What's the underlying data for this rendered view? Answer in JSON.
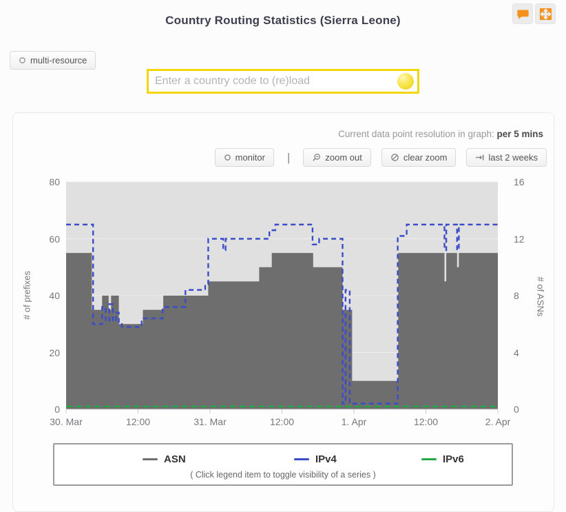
{
  "header": {
    "title": "Country Routing Statistics (Sierra Leone)"
  },
  "controls": {
    "multi_resource_label": "multi-resource",
    "country_input_placeholder": "Enter a country code to (re)load",
    "country_input_value": ""
  },
  "panel": {
    "resolution_label": "Current data point resolution in graph: ",
    "resolution_value": "per 5 mins",
    "toolbar": {
      "monitor_label": "monitor",
      "divider": "|",
      "zoom_out_label": "zoom out",
      "clear_zoom_label": "clear zoom",
      "last_2_weeks_label": "last 2 weeks"
    }
  },
  "chart_data": {
    "type": "area",
    "title": "",
    "grid": true,
    "legend_position": "bottom",
    "legend_hint": "( Click legend item to toggle visibility of a series )",
    "x_axis": {
      "unit": "hours since 30 Mar 00:00",
      "range": [
        0,
        72
      ],
      "tick_hours": [
        0,
        12,
        24,
        36,
        48,
        60,
        72
      ],
      "tick_labels": [
        "30. Mar",
        "12:00",
        "31. Mar",
        "12:00",
        "1. Apr",
        "12:00",
        "2. Apr"
      ]
    },
    "y_left": {
      "label": "# of prefixes",
      "range": [
        0,
        80
      ],
      "ticks": [
        0,
        20,
        40,
        60,
        80
      ]
    },
    "y_right": {
      "label": "# of ASNs",
      "range": [
        0,
        16
      ],
      "ticks": [
        0,
        4,
        8,
        12,
        16
      ]
    },
    "series": [
      {
        "name": "ASN",
        "axis": "right",
        "style": "area-step",
        "color": "#6e6e6e",
        "dash": "",
        "points": [
          [
            0,
            11
          ],
          [
            4.3,
            7
          ],
          [
            6.0,
            8
          ],
          [
            7.1,
            7
          ],
          [
            7.5,
            8
          ],
          [
            8.8,
            6
          ],
          [
            12.8,
            7
          ],
          [
            16.2,
            8
          ],
          [
            23.7,
            9
          ],
          [
            32.2,
            10
          ],
          [
            34.3,
            11
          ],
          [
            41.2,
            10
          ],
          [
            46.1,
            7
          ],
          [
            47.7,
            2
          ],
          [
            55.4,
            11
          ],
          [
            63.1,
            9
          ],
          [
            63.4,
            11
          ],
          [
            65.2,
            10
          ],
          [
            65.5,
            11
          ]
        ]
      },
      {
        "name": "IPv4",
        "axis": "left",
        "style": "dashed-step",
        "color": "#3b4cc8",
        "dash": "7 5",
        "points": [
          [
            0,
            65
          ],
          [
            4.5,
            30
          ],
          [
            6.0,
            36
          ],
          [
            6.6,
            31
          ],
          [
            7.2,
            37
          ],
          [
            7.8,
            31
          ],
          [
            8.3,
            34
          ],
          [
            8.8,
            30
          ],
          [
            9.3,
            29
          ],
          [
            12.6,
            32
          ],
          [
            16.1,
            36
          ],
          [
            19.9,
            42
          ],
          [
            23.2,
            44
          ],
          [
            23.7,
            60
          ],
          [
            26.2,
            56
          ],
          [
            26.6,
            60
          ],
          [
            33.9,
            63
          ],
          [
            34.9,
            65
          ],
          [
            41.1,
            58
          ],
          [
            42.2,
            60
          ],
          [
            46.1,
            2
          ],
          [
            46.6,
            42
          ],
          [
            47.3,
            2
          ],
          [
            55.3,
            61
          ],
          [
            56.8,
            65
          ],
          [
            63.1,
            56
          ],
          [
            63.4,
            65
          ],
          [
            65.2,
            56
          ],
          [
            65.5,
            65
          ]
        ]
      },
      {
        "name": "IPv6",
        "axis": "left",
        "style": "dashed-step",
        "color": "#22a844",
        "dash": "8 6",
        "points": [
          [
            0,
            1
          ]
        ]
      }
    ]
  },
  "colors": {
    "accent_orange": "#f4921e",
    "input_border": "#f2d50a",
    "plot_background": "#e0e0e0"
  }
}
